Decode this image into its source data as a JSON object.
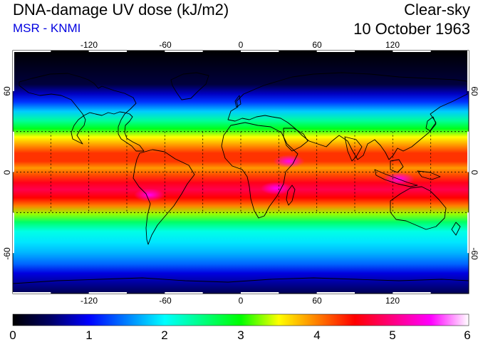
{
  "header": {
    "title": "DNA-damage UV dose (kJ/m2)",
    "source": "MSR - KNMI",
    "condition": "Clear-sky",
    "date": "10 October 1963"
  },
  "map": {
    "projection": "equirectangular",
    "lon_range": [
      -180,
      180
    ],
    "lat_range": [
      -90,
      90
    ],
    "lon_ticks": [
      -120,
      -60,
      0,
      60,
      120
    ],
    "lon_tick_labels": [
      "-120",
      "-60",
      "0",
      "60",
      "120"
    ],
    "lat_ticks": [
      60,
      0,
      -60
    ],
    "lat_tick_labels": [
      "60",
      "0",
      "-60"
    ],
    "grid_lons": [
      -150,
      -120,
      -90,
      -60,
      -30,
      0,
      30,
      60,
      90,
      120,
      150
    ],
    "grid_lats": [
      -30,
      0,
      30
    ],
    "grid": "dotted"
  },
  "colorbar": {
    "min": 0,
    "max": 6,
    "tick_values": [
      0,
      1,
      2,
      3,
      4,
      5,
      6
    ],
    "tick_labels": [
      "0",
      "1",
      "2",
      "3",
      "4",
      "5",
      "6"
    ],
    "stops": [
      {
        "value": 0.0,
        "color": "#000000"
      },
      {
        "value": 0.5,
        "color": "#000066"
      },
      {
        "value": 1.0,
        "color": "#0000ff"
      },
      {
        "value": 1.5,
        "color": "#0080ff"
      },
      {
        "value": 2.0,
        "color": "#00ffff"
      },
      {
        "value": 2.5,
        "color": "#00ff80"
      },
      {
        "value": 3.0,
        "color": "#00ff00"
      },
      {
        "value": 3.5,
        "color": "#ffff00"
      },
      {
        "value": 4.0,
        "color": "#ff8000"
      },
      {
        "value": 4.5,
        "color": "#ff0000"
      },
      {
        "value": 5.0,
        "color": "#ff0080"
      },
      {
        "value": 5.5,
        "color": "#ff00ff"
      },
      {
        "value": 6.0,
        "color": "#ffffff"
      }
    ]
  },
  "field_profile": [
    {
      "lat": 90,
      "value": 0.0
    },
    {
      "lat": 65,
      "value": 0.3
    },
    {
      "lat": 58,
      "value": 0.8
    },
    {
      "lat": 52,
      "value": 1.2
    },
    {
      "lat": 45,
      "value": 1.8
    },
    {
      "lat": 38,
      "value": 2.4
    },
    {
      "lat": 32,
      "value": 2.9
    },
    {
      "lat": 26,
      "value": 3.5
    },
    {
      "lat": 20,
      "value": 3.9
    },
    {
      "lat": 14,
      "value": 4.3
    },
    {
      "lat": 8,
      "value": 4.3
    },
    {
      "lat": 3,
      "value": 3.9
    },
    {
      "lat": -2,
      "value": 4.2
    },
    {
      "lat": -8,
      "value": 4.6
    },
    {
      "lat": -13,
      "value": 4.8
    },
    {
      "lat": -19,
      "value": 4.5
    },
    {
      "lat": -25,
      "value": 4.0
    },
    {
      "lat": -31,
      "value": 3.3
    },
    {
      "lat": -37,
      "value": 2.6
    },
    {
      "lat": -44,
      "value": 2.1
    },
    {
      "lat": -52,
      "value": 1.9
    },
    {
      "lat": -60,
      "value": 1.7
    },
    {
      "lat": -68,
      "value": 1.4
    },
    {
      "lat": -75,
      "value": 0.9
    },
    {
      "lat": -90,
      "value": 0.4
    }
  ],
  "hotspots": [
    {
      "lon": -72,
      "lat": -17,
      "value": 5.6,
      "region": "andes"
    },
    {
      "lon": 38,
      "lat": 8,
      "value": 5.5,
      "region": "east-africa"
    },
    {
      "lon": 28,
      "lat": -12,
      "value": 5.3,
      "region": "southern-africa"
    },
    {
      "lon": 125,
      "lat": -5,
      "value": 5.2,
      "region": "maritime-continent"
    }
  ],
  "colors": {
    "coastline": "#000000",
    "grid": "#000000",
    "source_text": "#0000e0"
  }
}
